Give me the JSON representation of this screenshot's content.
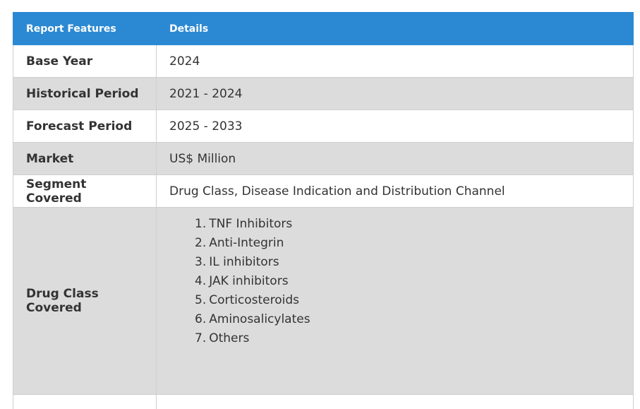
{
  "table": {
    "header": {
      "col1": "Report Features",
      "col2": "Details"
    },
    "rows": [
      {
        "feature": "Base Year",
        "details": "2024"
      },
      {
        "feature": "Historical Period",
        "details": "2021 - 2024"
      },
      {
        "feature": "Forecast Period",
        "details": "2025 - 2033"
      },
      {
        "feature": "Market",
        "details": "US$ Million"
      },
      {
        "feature": "Segment Covered",
        "details": "Drug Class, Disease Indication and Distribution Channel"
      },
      {
        "feature": "Drug Class Covered",
        "list": [
          {
            "num": "1.",
            "text": "TNF Inhibitors"
          },
          {
            "num": "2.",
            "text": "Anti-Integrin"
          },
          {
            "num": "3.",
            "text": "IL inhibitors"
          },
          {
            "num": "4.",
            "text": "JAK inhibitors"
          },
          {
            "num": "5.",
            "text": "Corticosteroids"
          },
          {
            "num": "6.",
            "text": "Aminosalicylates"
          },
          {
            "num": "7.",
            "text": "Others"
          }
        ]
      }
    ]
  }
}
